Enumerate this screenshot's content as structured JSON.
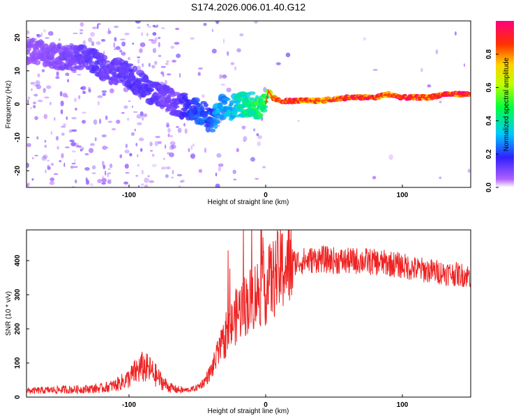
{
  "title": "S174.2026.006.01.40.G12",
  "chart_data": [
    {
      "type": "heatmap",
      "name": "spectrogram",
      "xlabel": "Height of straight line (km)",
      "ylabel": "Frequency (Hz)",
      "xlim": [
        -175,
        150
      ],
      "ylim": [
        -25,
        25
      ],
      "xticks": [
        -100,
        0,
        100
      ],
      "xtick_labels": [
        "-100",
        "0",
        "100"
      ],
      "yticks": [
        -20,
        -10,
        0,
        10,
        20
      ],
      "ytick_labels": [
        "-20",
        "-10",
        "0",
        "10",
        "20"
      ],
      "ridge": {
        "x": [
          -170,
          -150,
          -135,
          -125,
          -115,
          -105,
          -95,
          -85,
          -75,
          -65,
          -55,
          -45,
          -40,
          -35,
          -30,
          -25,
          -20,
          -10,
          -5,
          0,
          2,
          5,
          10,
          20,
          30,
          40,
          60,
          80,
          90,
          100,
          110,
          120,
          130,
          150
        ],
        "y": [
          16,
          14,
          14,
          13,
          10,
          10,
          7,
          4,
          2,
          0,
          -1,
          -3,
          -5,
          -3,
          0,
          -1,
          0,
          0,
          -1,
          0,
          4,
          2,
          1,
          1,
          1,
          1,
          2,
          2,
          3,
          2,
          2,
          2,
          3,
          3
        ],
        "amplitude": [
          0.08,
          0.1,
          0.12,
          0.15,
          0.12,
          0.14,
          0.15,
          0.15,
          0.12,
          0.12,
          0.2,
          0.25,
          0.22,
          0.3,
          0.3,
          0.35,
          0.4,
          0.45,
          0.5,
          0.5,
          0.6,
          0.8,
          0.9,
          0.95,
          0.95,
          0.85,
          0.95,
          0.95,
          0.85,
          0.95,
          0.95,
          0.9,
          0.95,
          0.95
        ]
      }
    },
    {
      "type": "colorbar",
      "name": "amplitude-scale",
      "label": "Normalized spectral amplitude",
      "lim": [
        0,
        1
      ],
      "ticks": [
        0.0,
        0.2,
        0.4,
        0.6,
        0.8
      ],
      "tick_labels": [
        "0.0",
        "0.2",
        "0.4",
        "0.6",
        "0.8"
      ]
    },
    {
      "type": "line",
      "name": "snr",
      "xlabel": "Height of straight line (km)",
      "ylabel": "SNR (10 * v/v)",
      "xlim": [
        -175,
        150
      ],
      "ylim": [
        0,
        490
      ],
      "xticks": [
        -100,
        0,
        100
      ],
      "xtick_labels": [
        "-100",
        "0",
        "100"
      ],
      "yticks": [
        0,
        100,
        200,
        300,
        400
      ],
      "ytick_labels": [
        "0",
        "100",
        "200",
        "300",
        "400"
      ],
      "color": "#ee2222",
      "series": [
        {
          "name": "SNR",
          "x": [
            -175,
            -160,
            -150,
            -140,
            -130,
            -120,
            -110,
            -100,
            -95,
            -90,
            -85,
            -80,
            -75,
            -70,
            -65,
            -60,
            -55,
            -50,
            -45,
            -40,
            -35,
            -30,
            -25,
            -20,
            -15,
            -10,
            -5,
            0,
            5,
            10,
            15,
            20,
            30,
            40,
            50,
            60,
            70,
            80,
            90,
            100,
            110,
            120,
            130,
            140,
            150
          ],
          "y": [
            18,
            20,
            22,
            22,
            24,
            26,
            35,
            55,
            75,
            88,
            80,
            62,
            42,
            28,
            22,
            20,
            22,
            28,
            45,
            75,
            125,
            170,
            210,
            250,
            270,
            290,
            310,
            320,
            345,
            370,
            385,
            395,
            400,
            405,
            400,
            398,
            400,
            395,
            392,
            385,
            375,
            370,
            365,
            360,
            355
          ]
        }
      ]
    }
  ]
}
